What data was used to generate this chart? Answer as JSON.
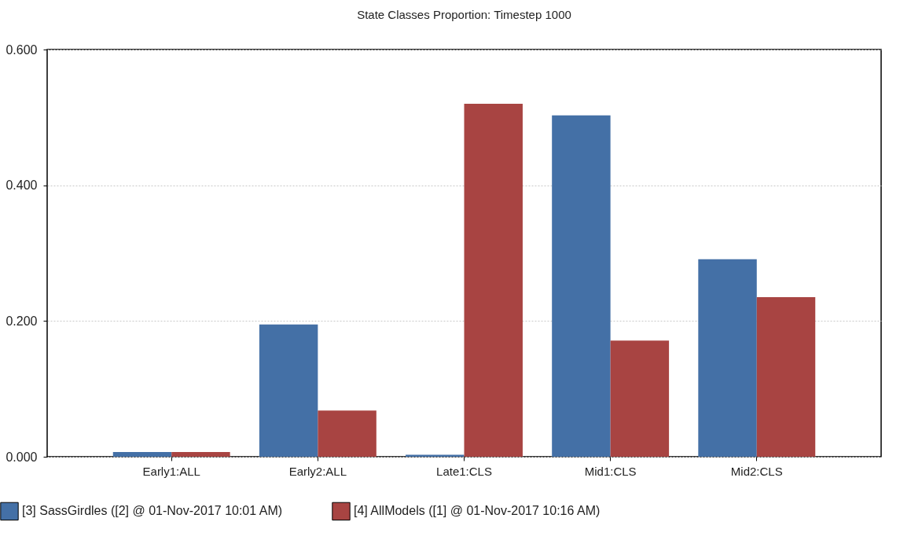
{
  "chart_data": {
    "type": "bar",
    "title": "State Classes Proportion: Timestep 1000",
    "categories": [
      "Early1:ALL",
      "Early2:ALL",
      "Late1:CLS",
      "Mid1:CLS",
      "Mid2:CLS"
    ],
    "series": [
      {
        "name": "[3] SassGirdles ([2] @ 01-Nov-2017 10:01 AM)",
        "color": "#4470a6",
        "values": [
          0.007,
          0.195,
          0.003,
          0.503,
          0.291
        ]
      },
      {
        "name": "[4] AllModels ([1] @ 01-Nov-2017 10:16 AM)",
        "color": "#a84442",
        "values": [
          0.007,
          0.068,
          0.52,
          0.171,
          0.235
        ]
      }
    ],
    "ylim": [
      0,
      0.6
    ],
    "yticks": [
      {
        "value": 0,
        "label": "0.000"
      },
      {
        "value": 0.2,
        "label": "0.200"
      },
      {
        "value": 0.4,
        "label": "0.400"
      },
      {
        "value": 0.6,
        "label": "0.600"
      }
    ],
    "grid": "y",
    "legend": "bottom left"
  }
}
